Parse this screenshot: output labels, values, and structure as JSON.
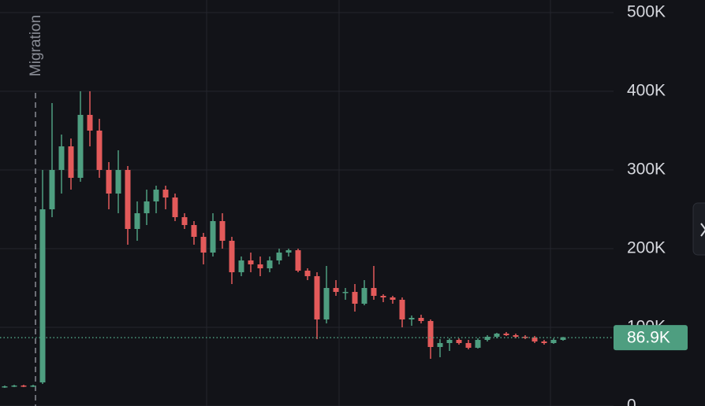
{
  "chart_data": {
    "type": "candlestick",
    "open": [
      24000,
      25000,
      26000,
      25000,
      30000,
      250000,
      300000,
      330000,
      290000,
      370000,
      350000,
      300000,
      270000,
      300000,
      225000,
      245000,
      260000,
      275000,
      265000,
      240000,
      230000,
      215000,
      195000,
      235000,
      210000,
      170000,
      185000,
      180000,
      175000,
      185000,
      195000,
      198000,
      172000,
      165000,
      110000,
      150000,
      145000,
      145000,
      130000,
      150000,
      140000,
      138000,
      135000,
      110000,
      112000,
      108000,
      75000,
      80000,
      84000,
      80000,
      74000,
      84000,
      88000,
      92000,
      90000,
      88000,
      87000,
      82000,
      80000,
      84000
    ],
    "high": [
      26000,
      27000,
      27000,
      27000,
      300000,
      385000,
      345000,
      340000,
      400000,
      400000,
      365000,
      310000,
      325000,
      305000,
      260000,
      275000,
      280000,
      280000,
      270000,
      245000,
      235000,
      220000,
      245000,
      245000,
      215000,
      190000,
      195000,
      190000,
      190000,
      200000,
      200000,
      200000,
      175000,
      170000,
      178000,
      160000,
      150000,
      155000,
      160000,
      178000,
      142000,
      140000,
      138000,
      115000,
      116000,
      110000,
      85000,
      86000,
      86000,
      84000,
      86000,
      90000,
      93000,
      94000,
      92000,
      90000,
      89000,
      84000,
      86000,
      88000
    ],
    "low": [
      23000,
      24000,
      24000,
      24000,
      28000,
      240000,
      270000,
      275000,
      285000,
      330000,
      290000,
      250000,
      245000,
      205000,
      210000,
      230000,
      245000,
      250000,
      235000,
      225000,
      205000,
      180000,
      190000,
      200000,
      155000,
      165000,
      170000,
      165000,
      170000,
      180000,
      190000,
      170000,
      160000,
      85000,
      105000,
      140000,
      135000,
      120000,
      128000,
      135000,
      132000,
      130000,
      100000,
      102000,
      105000,
      60000,
      62000,
      70000,
      78000,
      72000,
      73000,
      82000,
      86000,
      89000,
      86000,
      85000,
      80000,
      78000,
      79000,
      83000
    ],
    "close": [
      25000,
      26000,
      25000,
      26000,
      250000,
      300000,
      330000,
      290000,
      370000,
      350000,
      300000,
      270000,
      300000,
      225000,
      245000,
      260000,
      275000,
      265000,
      240000,
      230000,
      215000,
      195000,
      235000,
      210000,
      170000,
      185000,
      180000,
      175000,
      185000,
      195000,
      198000,
      172000,
      165000,
      110000,
      150000,
      145000,
      145000,
      130000,
      150000,
      140000,
      138000,
      135000,
      110000,
      112000,
      108000,
      75000,
      80000,
      84000,
      80000,
      74000,
      84000,
      88000,
      92000,
      90000,
      88000,
      87000,
      82000,
      80000,
      84000,
      86900
    ],
    "up_color": "#4e9e80",
    "down_color": "#e35a5a",
    "ylim": [
      0,
      516000
    ],
    "yticks": [
      {
        "value": 0,
        "label": "0"
      },
      {
        "value": 100000,
        "label": "100K"
      },
      {
        "value": 200000,
        "label": "200K"
      },
      {
        "value": 300000,
        "label": "300K"
      },
      {
        "value": 400000,
        "label": "400K"
      },
      {
        "value": 500000,
        "label": "500K"
      }
    ],
    "grid": true,
    "last_price": {
      "value": 86900,
      "label": "86.9K",
      "color": "#4e9e80"
    },
    "annotations": [
      {
        "label": "Migration"
      }
    ]
  }
}
